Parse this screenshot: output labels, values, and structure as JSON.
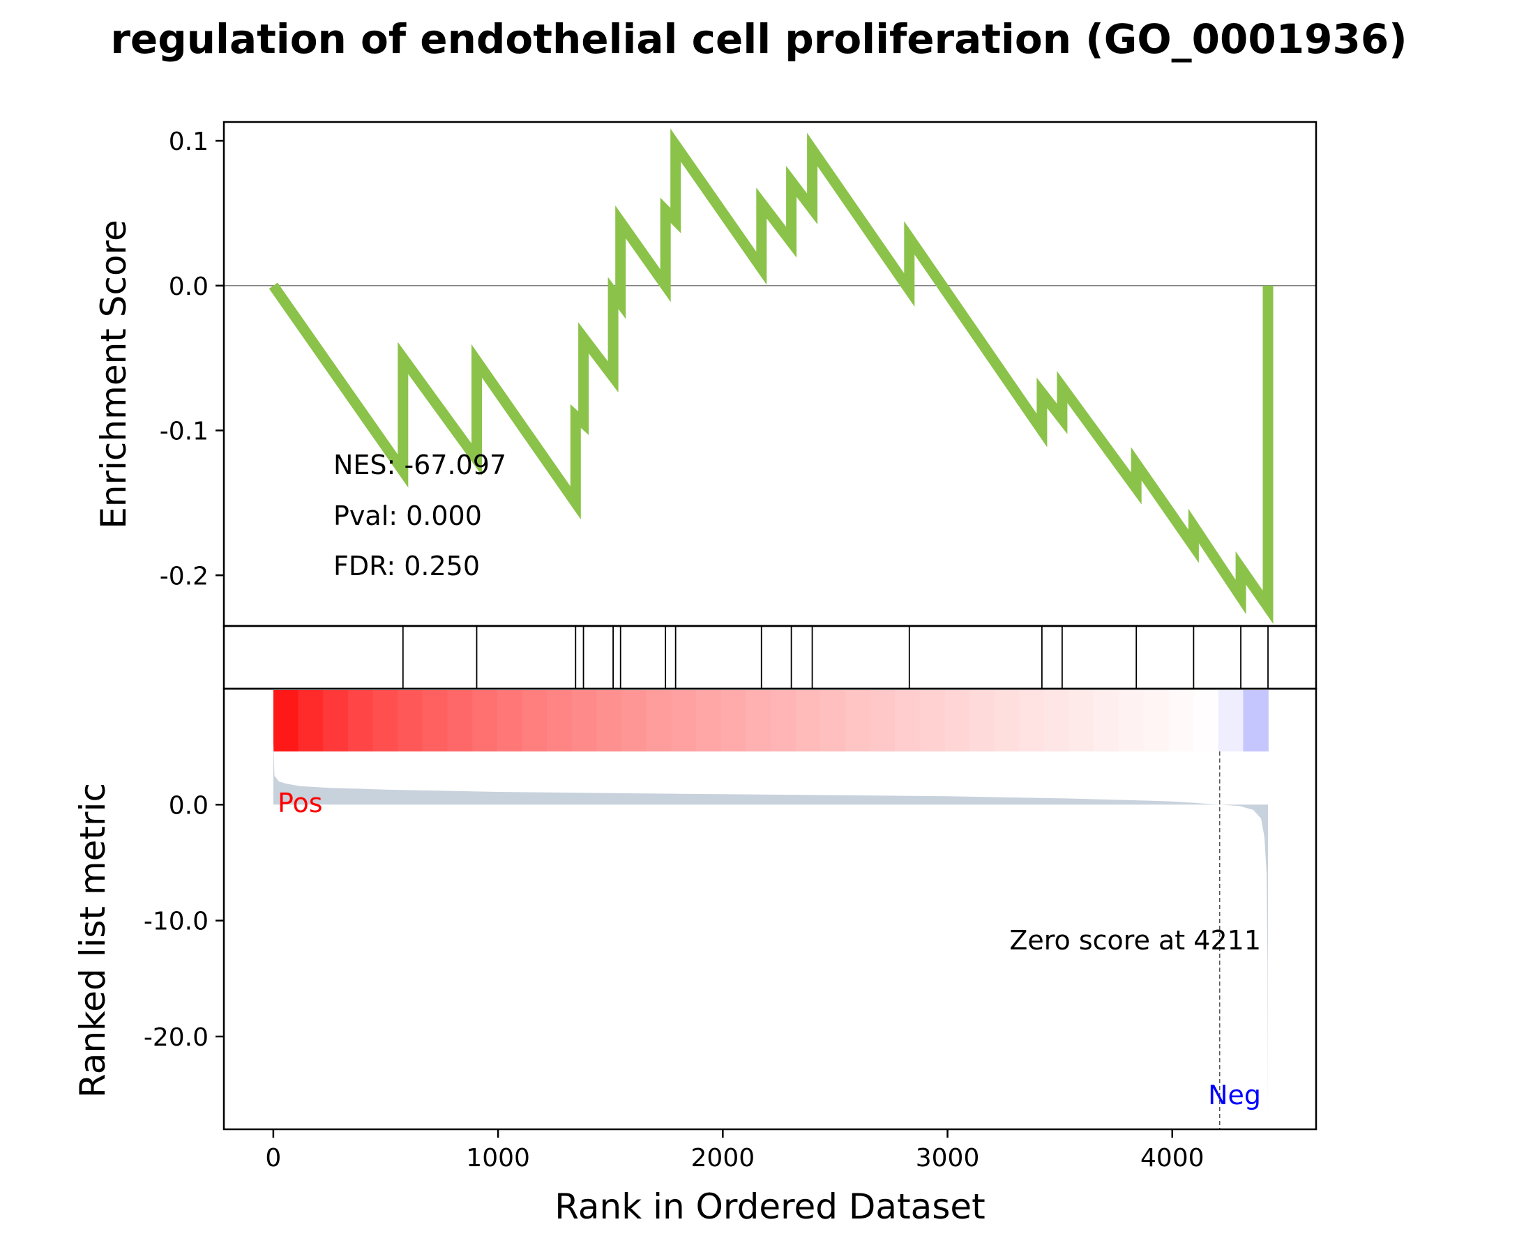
{
  "chart_data": {
    "type": "line",
    "title": "regulation of endothelial cell proliferation (GO_0001936)",
    "xlabel": "Rank in Ordered Dataset",
    "xlim": [
      -220,
      4640
    ],
    "xticks": [
      0,
      1000,
      2000,
      3000,
      4000
    ],
    "xtick_labels": [
      "0",
      "1000",
      "2000",
      "3000",
      "4000"
    ],
    "es_panel": {
      "ylabel": "Enrichment Score",
      "ylim": [
        -0.235,
        0.113
      ],
      "yticks": [
        0.1,
        0.0,
        -0.1,
        -0.2
      ],
      "ytick_labels": [
        "0.1",
        "0.0",
        "-0.1",
        "-0.2"
      ],
      "line_color": "#8bc34a",
      "zero_line": 0.0,
      "annotations": [
        "NES: -67.097",
        "Pval: 0.000",
        "FDR: 0.250"
      ],
      "series": [
        {
          "x": [
            0,
            577,
            577,
            905,
            905,
            1345,
            1345,
            1380,
            1380,
            1512,
            1512,
            1545,
            1545,
            1745,
            1745,
            1790,
            1790,
            2172,
            2172,
            2305,
            2305,
            2398,
            2398,
            2830,
            2830,
            3420,
            3420,
            3510,
            3510,
            3840,
            3840,
            4095,
            4095,
            4305,
            4305,
            4426,
            4426
          ],
          "y": [
            0.0,
            -0.128,
            -0.05,
            -0.12,
            -0.052,
            -0.15,
            -0.09,
            -0.095,
            -0.036,
            -0.063,
            -0.005,
            -0.012,
            0.044,
            0.0,
            0.052,
            0.045,
            0.097,
            0.012,
            0.057,
            0.03,
            0.072,
            0.053,
            0.094,
            -0.003,
            0.033,
            -0.1,
            -0.074,
            -0.092,
            -0.07,
            -0.14,
            -0.123,
            -0.18,
            -0.166,
            -0.215,
            -0.195,
            -0.222,
            0.0
          ]
        }
      ]
    },
    "hit_positions": [
      577,
      905,
      1345,
      1380,
      1512,
      1545,
      1745,
      1790,
      2172,
      2305,
      2398,
      2830,
      3420,
      3510,
      3840,
      4095,
      4305,
      4426
    ],
    "rank_panel": {
      "ylabel": "Ranked list metric",
      "ylim": [
        -28,
        10
      ],
      "yticks": [
        0.0,
        -10.0,
        -20.0
      ],
      "ytick_labels": [
        "0.0",
        "-10.0",
        "-20.0"
      ],
      "fill_color": "#c8d2dc",
      "pos_label": "Pos",
      "neg_label": "Neg",
      "pos_color": "#ff0000",
      "neg_color": "#0000ff",
      "zero_cross_rank": 4211,
      "zero_cross_text": "Zero score at 4211",
      "metric": {
        "x": [
          0,
          5,
          25,
          60,
          120,
          250,
          500,
          1000,
          1500,
          2000,
          2500,
          3000,
          3500,
          3800,
          4000,
          4100,
          4150,
          4211,
          4300,
          4360,
          4395,
          4410,
          4420,
          4424,
          4426
        ],
        "y": [
          5.6,
          2.5,
          2.0,
          1.8,
          1.6,
          1.45,
          1.3,
          1.1,
          1.0,
          0.9,
          0.82,
          0.72,
          0.55,
          0.4,
          0.28,
          0.15,
          0.08,
          0.0,
          -0.12,
          -0.45,
          -1.2,
          -2.8,
          -6.0,
          -14.0,
          -27.0
        ]
      }
    },
    "heatmap_bar": {
      "from_color": "#ff0000",
      "to_color": "#0000ff",
      "mid_color": "#ffffff",
      "mid_rank": 4211
    }
  }
}
